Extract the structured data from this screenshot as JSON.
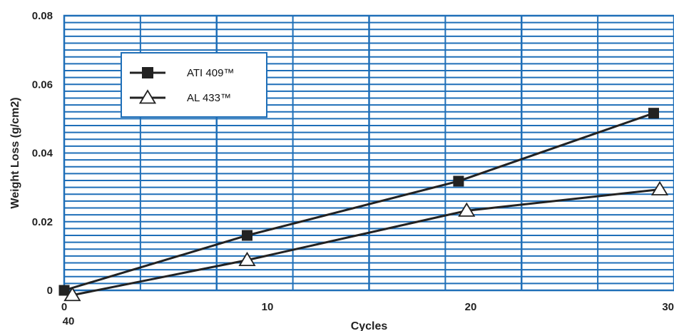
{
  "chart_data": {
    "type": "line",
    "xlabel": "Cycles",
    "ylabel": "Weight Loss (g/cm2)",
    "xlim": [
      0,
      30
    ],
    "ylim": [
      0,
      0.08
    ],
    "x_ticks": [
      "0",
      "10",
      "20",
      "30"
    ],
    "x_tick_extra": "40",
    "y_ticks": [
      "0",
      "0.02",
      "0.04",
      "0.06",
      "0.08"
    ],
    "grid": true,
    "legend_position": "top-left",
    "colors": {
      "grid": "#1f6fb8",
      "series": "#222222"
    },
    "series": [
      {
        "name": "ATI 409™",
        "marker": "square-filled",
        "x": [
          0,
          9,
          19.4,
          29
        ],
        "y": [
          0,
          0.016,
          0.0318,
          0.0516
        ]
      },
      {
        "name": "AL 433™",
        "marker": "triangle-open",
        "x": [
          0.4,
          9,
          19.8,
          29.3
        ],
        "y": [
          -0.0014,
          0.0088,
          0.0232,
          0.0294
        ]
      }
    ]
  }
}
